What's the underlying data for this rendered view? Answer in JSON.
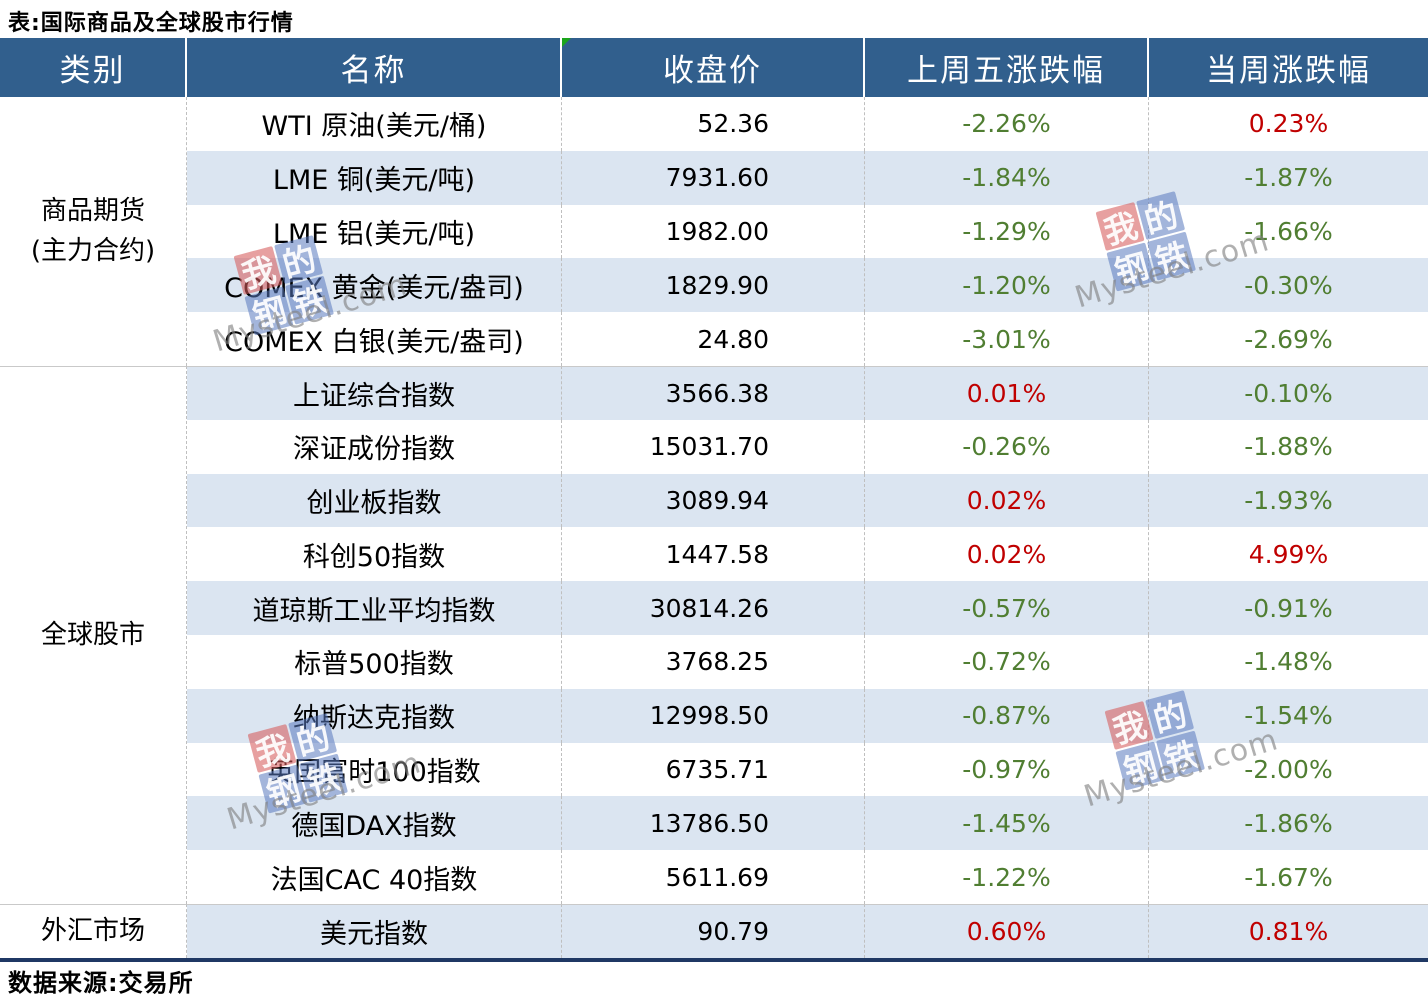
{
  "title": "表:国际商品及全球股市行情",
  "footer": {
    "source": "数据来源:交易所"
  },
  "watermark": {
    "chars": [
      "我",
      "的",
      "钢",
      "铁"
    ],
    "site": "Mysteel.com"
  },
  "colors": {
    "header_bg": "#315F8D",
    "stripe_row_bg": "#DBE5F1",
    "up_red": "#C00000",
    "down_green": "#507E32",
    "bottom_border": "#1F3864",
    "flag_green": "#1BA51B"
  },
  "chart_data": {
    "type": "table",
    "title": "表:国际商品及全球股市行情",
    "source": "数据来源:交易所",
    "columns": [
      "类别",
      "名称",
      "收盘价",
      "上周五涨跌幅",
      "当周涨跌幅"
    ],
    "groups": [
      {
        "category": "商品期货(主力合约)",
        "category_lines": [
          "商品期货",
          "(主力合约)"
        ],
        "rows": [
          {
            "name": "WTI 原油(美元/桶)",
            "close": "52.36",
            "last_friday_chg": "-2.26%",
            "last_friday_dir": "down",
            "week_chg": "0.23%",
            "week_dir": "up"
          },
          {
            "name": "LME 铜(美元/吨)",
            "close": "7931.60",
            "last_friday_chg": "-1.84%",
            "last_friday_dir": "down",
            "week_chg": "-1.87%",
            "week_dir": "down"
          },
          {
            "name": "LME 铝(美元/吨)",
            "close": "1982.00",
            "last_friday_chg": "-1.29%",
            "last_friday_dir": "down",
            "week_chg": "-1.66%",
            "week_dir": "down"
          },
          {
            "name": "COMEX 黄金(美元/盎司)",
            "close": "1829.90",
            "last_friday_chg": "-1.20%",
            "last_friday_dir": "down",
            "week_chg": "-0.30%",
            "week_dir": "down"
          },
          {
            "name": "COMEX 白银(美元/盎司)",
            "close": "24.80",
            "last_friday_chg": "-3.01%",
            "last_friday_dir": "down",
            "week_chg": "-2.69%",
            "week_dir": "down"
          }
        ]
      },
      {
        "category": "全球股市",
        "category_lines": [
          "全球股市"
        ],
        "rows": [
          {
            "name": "上证综合指数",
            "close": "3566.38",
            "last_friday_chg": "0.01%",
            "last_friday_dir": "up",
            "week_chg": "-0.10%",
            "week_dir": "down"
          },
          {
            "name": "深证成份指数",
            "close": "15031.70",
            "last_friday_chg": "-0.26%",
            "last_friday_dir": "down",
            "week_chg": "-1.88%",
            "week_dir": "down"
          },
          {
            "name": "创业板指数",
            "close": "3089.94",
            "last_friday_chg": "0.02%",
            "last_friday_dir": "up",
            "week_chg": "-1.93%",
            "week_dir": "down"
          },
          {
            "name": "科创50指数",
            "close": "1447.58",
            "last_friday_chg": "0.02%",
            "last_friday_dir": "up",
            "week_chg": "4.99%",
            "week_dir": "up"
          },
          {
            "name": "道琼斯工业平均指数",
            "close": "30814.26",
            "last_friday_chg": "-0.57%",
            "last_friday_dir": "down",
            "week_chg": "-0.91%",
            "week_dir": "down"
          },
          {
            "name": "标普500指数",
            "close": "3768.25",
            "last_friday_chg": "-0.72%",
            "last_friday_dir": "down",
            "week_chg": "-1.48%",
            "week_dir": "down"
          },
          {
            "name": "纳斯达克指数",
            "close": "12998.50",
            "last_friday_chg": "-0.87%",
            "last_friday_dir": "down",
            "week_chg": "-1.54%",
            "week_dir": "down"
          },
          {
            "name": "英国富时100指数",
            "close": "6735.71",
            "last_friday_chg": "-0.97%",
            "last_friday_dir": "down",
            "week_chg": "-2.00%",
            "week_dir": "down"
          },
          {
            "name": "德国DAX指数",
            "close": "13786.50",
            "last_friday_chg": "-1.45%",
            "last_friday_dir": "down",
            "week_chg": "-1.86%",
            "week_dir": "down"
          },
          {
            "name": "法国CAC 40指数",
            "close": "5611.69",
            "last_friday_chg": "-1.22%",
            "last_friday_dir": "down",
            "week_chg": "-1.67%",
            "week_dir": "down"
          }
        ]
      },
      {
        "category": "外汇市场",
        "category_lines": [
          "外汇市场"
        ],
        "rows": [
          {
            "name": "美元指数",
            "close": "90.79",
            "last_friday_chg": "0.60%",
            "last_friday_dir": "up",
            "week_chg": "0.81%",
            "week_dir": "up"
          }
        ]
      }
    ]
  }
}
